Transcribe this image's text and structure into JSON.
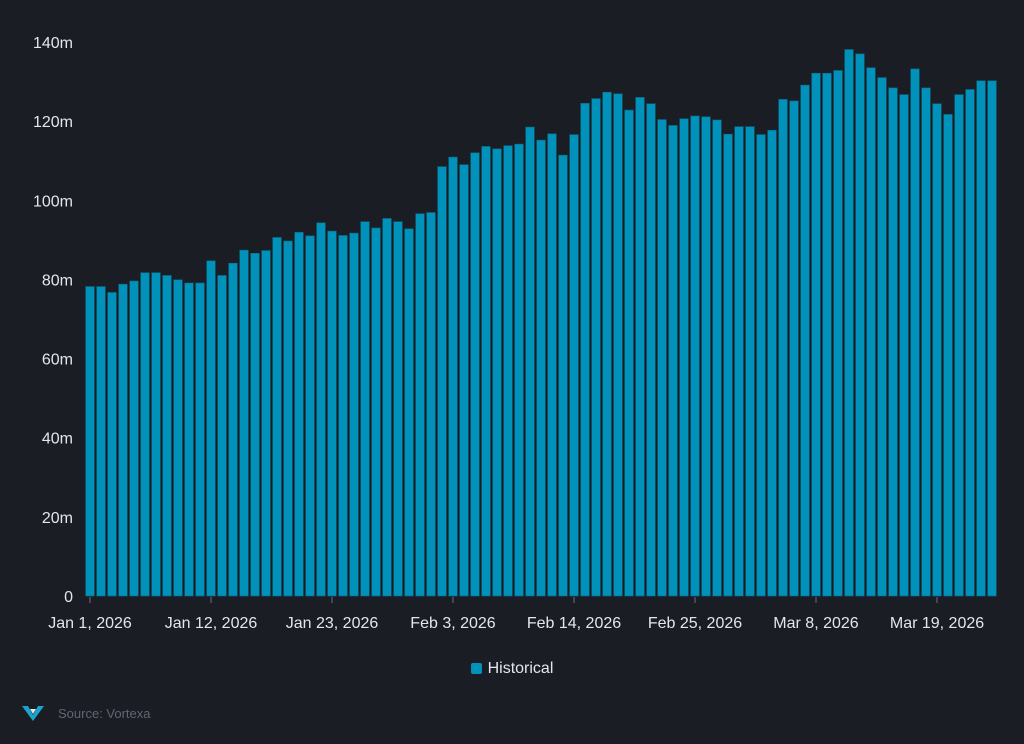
{
  "chart_data": {
    "type": "bar",
    "title": "",
    "xlabel": "",
    "ylabel": "",
    "ylim": [
      0,
      140
    ],
    "y_ticks": [
      "0",
      "20m",
      "40m",
      "60m",
      "80m",
      "100m",
      "120m",
      "140m"
    ],
    "y_tick_values": [
      0,
      20,
      40,
      60,
      80,
      100,
      120,
      140
    ],
    "y_unit": "millions",
    "x_start": "2026-01-01",
    "x_end": "2026-03-24",
    "x_tick_labels": [
      "Jan 1, 2026",
      "Jan 12, 2026",
      "Jan 23, 2026",
      "Feb 3, 2026",
      "Feb 14, 2026",
      "Feb 25, 2026",
      "Mar 8, 2026",
      "Mar 19, 2026"
    ],
    "x_tick_dates": [
      "2026-01-01",
      "2026-01-12",
      "2026-01-23",
      "2026-02-03",
      "2026-02-14",
      "2026-02-25",
      "2026-03-08",
      "2026-03-19"
    ],
    "grid": false,
    "legend_position": "bottom",
    "series": [
      {
        "name": "Historical",
        "color": "#0092bb",
        "values": [
          78.2,
          78.2,
          76.7,
          78.8,
          79.6,
          81.7,
          81.7,
          81.0,
          79.9,
          79.1,
          79.1,
          84.7,
          81.0,
          84.1,
          87.4,
          86.6,
          87.3,
          90.6,
          89.7,
          91.9,
          91.0,
          94.3,
          92.2,
          91.1,
          91.7,
          94.6,
          93.0,
          95.4,
          94.6,
          92.8,
          96.6,
          96.9,
          108.5,
          110.9,
          109.0,
          112.0,
          113.6,
          113.0,
          113.8,
          114.2,
          118.5,
          115.2,
          116.8,
          111.4,
          116.6,
          124.5,
          125.7,
          127.3,
          126.9,
          122.8,
          126.0,
          124.4,
          120.4,
          118.9,
          120.6,
          121.3,
          121.1,
          120.3,
          116.7,
          118.6,
          118.6,
          116.6,
          117.7,
          125.5,
          125.1,
          129.1,
          132.1,
          132.1,
          132.8,
          138.1,
          137.0,
          133.5,
          131.0,
          128.4,
          126.7,
          133.2,
          128.4,
          124.4,
          121.7,
          126.7,
          128.0,
          130.2,
          130.2
        ]
      }
    ]
  },
  "legend": {
    "label": "Historical"
  },
  "source": {
    "text": "Source: Vortexa",
    "logo_text": "Vortexa"
  }
}
